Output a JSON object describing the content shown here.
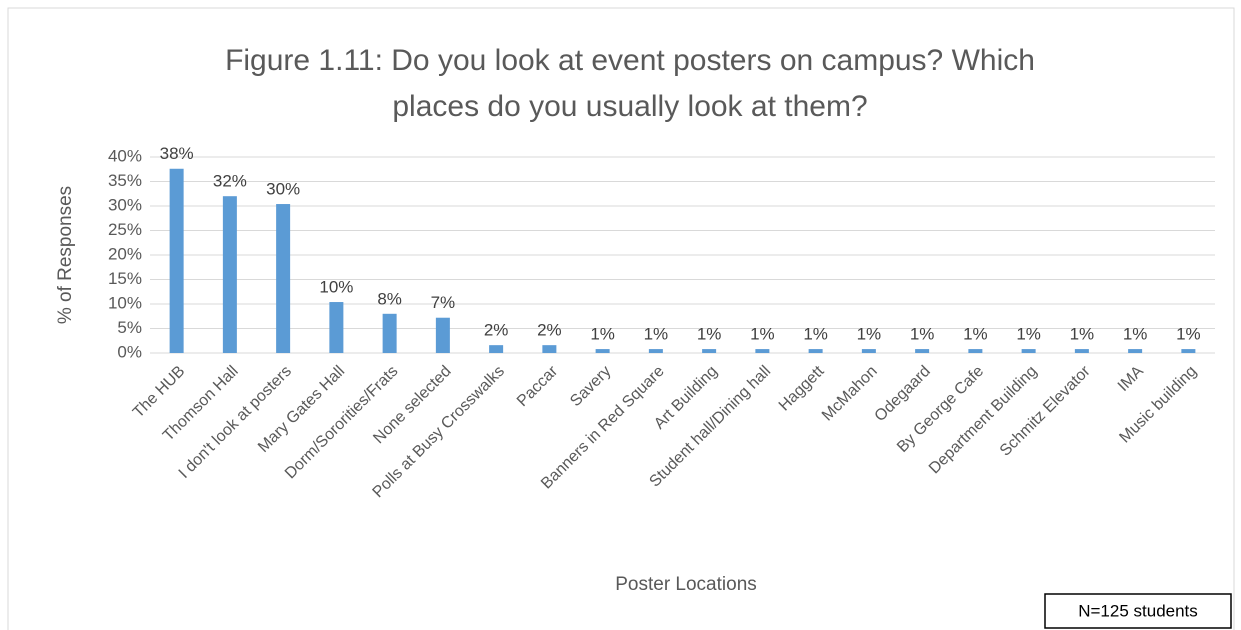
{
  "chart_data": {
    "type": "bar",
    "title": [
      "Figure 1.11: Do you look at event posters on campus? Which",
      "places do you usually look at them?"
    ],
    "x_label": "Poster Locations",
    "y_label": "% of Responses",
    "note": "N=125 students",
    "categories": [
      "The HUB",
      "Thomson Hall",
      "I don't look at posters",
      "Mary Gates Hall",
      "Dorm/Sororities/Frats",
      "None selected",
      "Polls at Busy Crosswalks",
      "Paccar",
      "Savery",
      "Banners in Red Square",
      "Art Building",
      "Student hall/Dining hall",
      "Haggett",
      "McMahon",
      "Odegaard",
      "By George Cafe",
      "Department Building",
      "Schmitz Elevator",
      "IMA",
      "Music building"
    ],
    "values": [
      37.6,
      32,
      30.4,
      10.4,
      8,
      7.2,
      1.6,
      1.6,
      0.8,
      0.8,
      0.8,
      0.8,
      0.8,
      0.8,
      0.8,
      0.8,
      0.8,
      0.8,
      0.8,
      0.8
    ],
    "value_labels": [
      "38%",
      "32%",
      "30%",
      "10%",
      "8%",
      "7%",
      "2%",
      "2%",
      "1%",
      "1%",
      "1%",
      "1%",
      "1%",
      "1%",
      "1%",
      "1%",
      "1%",
      "1%",
      "1%",
      "1%"
    ],
    "color": "#5b9bd5",
    "ylim": [
      0,
      40
    ],
    "yticks": [
      {
        "value": 0,
        "label": "0%"
      },
      {
        "value": 5,
        "label": "5%"
      },
      {
        "value": 10,
        "label": "10%"
      },
      {
        "value": 15,
        "label": "15%"
      },
      {
        "value": 20,
        "label": "20%"
      },
      {
        "value": 25,
        "label": "25%"
      },
      {
        "value": 30,
        "label": "30%"
      },
      {
        "value": 35,
        "label": "35%"
      },
      {
        "value": 40,
        "label": "40%"
      }
    ],
    "grid": true
  }
}
